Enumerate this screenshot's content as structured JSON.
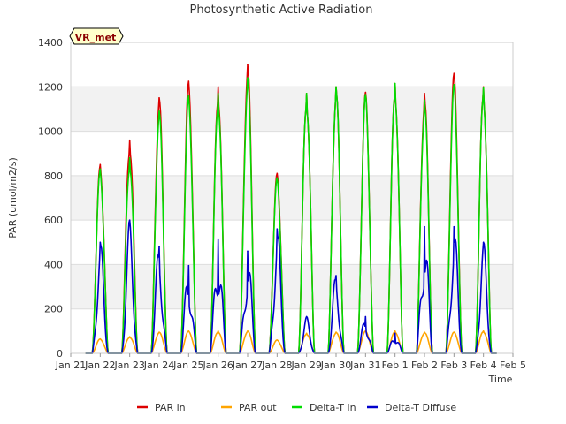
{
  "chart_data": {
    "type": "line",
    "title": "Photosynthetic Active Radiation",
    "xlabel": "Time",
    "ylabel": "PAR (umol/m2/s)",
    "ylim": [
      0,
      1400
    ],
    "yticks": [
      0,
      200,
      400,
      600,
      800,
      1000,
      1200,
      1400
    ],
    "xlim": [
      0,
      15
    ],
    "xticks": [
      "Jan 21",
      "Jan 22",
      "Jan 23",
      "Jan 24",
      "Jan 25",
      "Jan 26",
      "Jan 27",
      "Jan 28",
      "Jan 29",
      "Jan 30",
      "Jan 31",
      "Feb 1",
      "Feb 2",
      "Feb 3",
      "Feb 4",
      "Feb 5"
    ],
    "site_label": "VR_met",
    "grid": true,
    "legend_position": "bottom",
    "x": [
      0.5,
      1.0,
      2.0,
      3.0,
      4.0,
      5.0,
      6.0,
      7.0,
      8.0,
      9.0,
      10.0,
      11.0,
      12.0,
      13.0,
      14.0
    ],
    "series": [
      {
        "name": "PAR in",
        "color": "#dd0000",
        "values": [
          0,
          850,
          960,
          1150,
          1225,
          1200,
          1300,
          810,
          1170,
          1200,
          1175,
          1215,
          1170,
          1260,
          1200
        ]
      },
      {
        "name": "PAR out",
        "color": "#ffa500",
        "values": [
          0,
          65,
          75,
          95,
          100,
          100,
          100,
          60,
          90,
          95,
          100,
          100,
          95,
          95,
          100
        ]
      },
      {
        "name": "Delta-T in",
        "color": "#00dd00",
        "values": [
          0,
          830,
          880,
          1090,
          1160,
          1170,
          1240,
          790,
          1170,
          1200,
          1165,
          1215,
          1140,
          1210,
          1195
        ]
      },
      {
        "name": "Delta-T Diffuse",
        "color": "#0000cc",
        "values": [
          0,
          500,
          600,
          480,
          395,
          515,
          460,
          560,
          165,
          350,
          165,
          90,
          570,
          570,
          500
        ]
      }
    ]
  }
}
